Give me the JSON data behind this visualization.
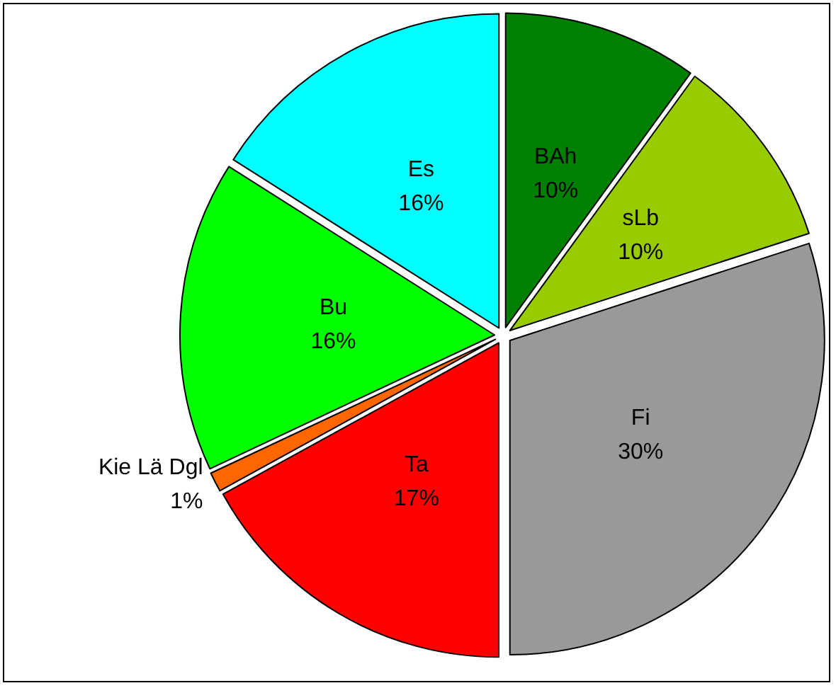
{
  "chart_data": {
    "type": "pie",
    "categories": [
      "BAh",
      "sLb",
      "Fi",
      "Ta",
      "Kie Lä Dgl",
      "Bu",
      "Es"
    ],
    "values": [
      10,
      10,
      30,
      17,
      1,
      16,
      16
    ],
    "value_labels": [
      "10%",
      "10%",
      "30%",
      "17%",
      "1%",
      "16%",
      "16%"
    ],
    "colors": [
      "#008000",
      "#99cc00",
      "#999999",
      "#ff0000",
      "#ff6600",
      "#00ff00",
      "#00ffff"
    ],
    "legend": false
  }
}
